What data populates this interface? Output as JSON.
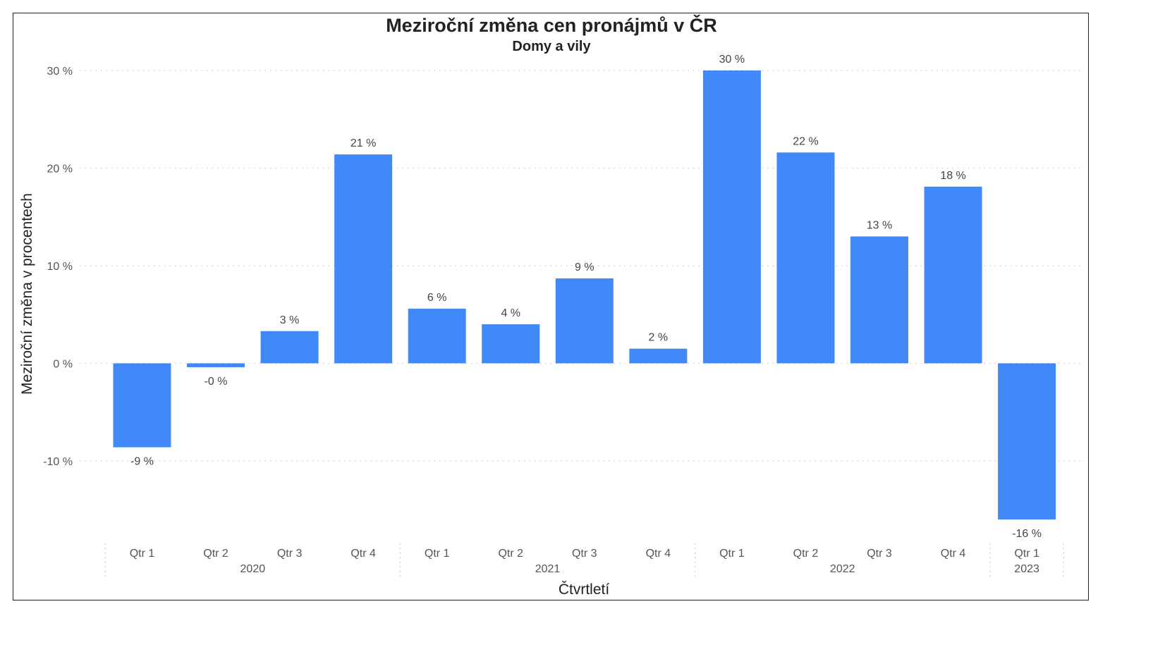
{
  "chart_data": {
    "type": "bar",
    "title": "Meziroční změna cen pronájmů v ČR",
    "subtitle": "Domy a vily",
    "xlabel": "Čtvrtletí",
    "ylabel": "Meziroční změna v procentech",
    "ylim": [
      -16,
      30
    ],
    "yticks": [
      30,
      20,
      10,
      0,
      -10
    ],
    "ytick_labels": [
      "30 %",
      "20 %",
      "10 %",
      "0 %",
      "-10 %"
    ],
    "grid": true,
    "groups": [
      {
        "label": "2020",
        "categories": [
          "Qtr 1",
          "Qtr 2",
          "Qtr 3",
          "Qtr 4"
        ]
      },
      {
        "label": "2021",
        "categories": [
          "Qtr 1",
          "Qtr 2",
          "Qtr 3",
          "Qtr 4"
        ]
      },
      {
        "label": "2022",
        "categories": [
          "Qtr 1",
          "Qtr 2",
          "Qtr 3",
          "Qtr 4"
        ]
      },
      {
        "label": "2023",
        "categories": [
          "Qtr 1"
        ]
      }
    ],
    "values": [
      -8.6,
      -0.4,
      3.3,
      21.4,
      5.6,
      4.0,
      8.7,
      1.5,
      30.0,
      21.6,
      13.0,
      18.1,
      -16.0
    ],
    "data_labels": [
      "-9 %",
      "-0 %",
      "3 %",
      "21 %",
      "6 %",
      "4 %",
      "9 %",
      "2 %",
      "30 %",
      "22 %",
      "13 %",
      "18 %",
      "-16 %"
    ],
    "bar_color": "#4189f8"
  }
}
